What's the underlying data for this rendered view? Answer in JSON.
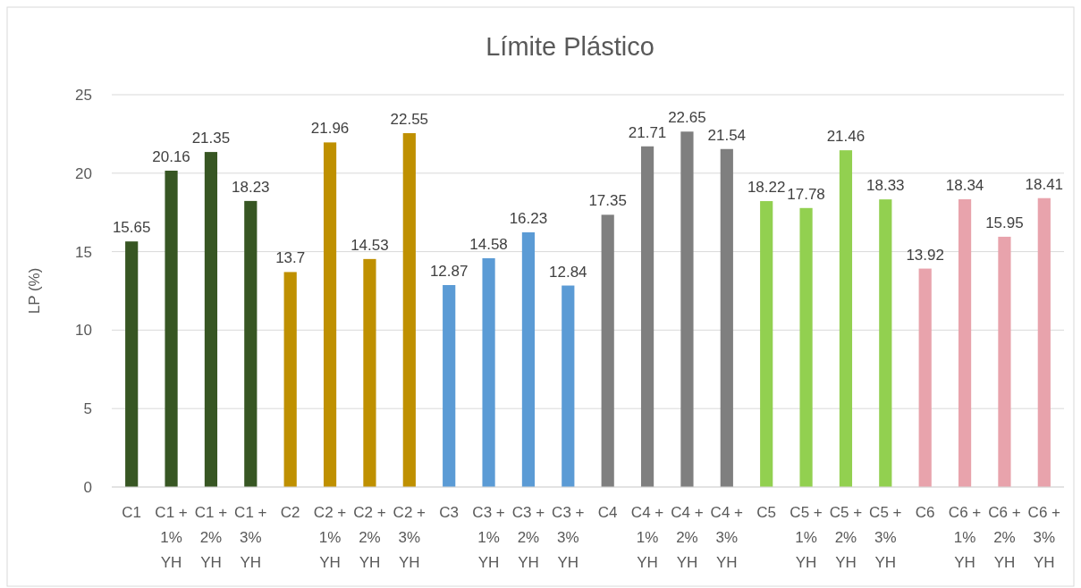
{
  "chart_data": {
    "type": "bar",
    "title": "Límite Plástico",
    "ylabel": "LP (%)",
    "categories": [
      "C1",
      "C1 + 1% YH",
      "C1 + 2% YH",
      "C1 + 3% YH",
      "C2",
      "C2 + 1% YH",
      "C2 + 2% YH",
      "C2 + 3% YH",
      "C3",
      "C3 + 1% YH",
      "C3 + 2% YH",
      "C3 + 3% YH",
      "C4",
      "C4 + 1% YH",
      "C4 + 2% YH",
      "C4 + 3% YH",
      "C5",
      "C5 + 1% YH",
      "C5 + 2% YH",
      "C5 + 3% YH",
      "C6",
      "C6 + 1% YH",
      "C6 + 2% YH",
      "C6 + 3% YH"
    ],
    "values": [
      15.65,
      20.16,
      21.35,
      18.23,
      13.7,
      21.96,
      14.53,
      22.55,
      12.87,
      14.58,
      16.23,
      12.84,
      17.35,
      21.71,
      22.65,
      21.54,
      18.22,
      17.78,
      21.46,
      18.33,
      13.92,
      18.34,
      15.95,
      18.41
    ],
    "colors": [
      "#375623",
      "#375623",
      "#375623",
      "#375623",
      "#bf9000",
      "#bf9000",
      "#bf9000",
      "#bf9000",
      "#5b9bd5",
      "#5b9bd5",
      "#5b9bd5",
      "#5b9bd5",
      "#7f7f7f",
      "#7f7f7f",
      "#7f7f7f",
      "#7f7f7f",
      "#92d050",
      "#92d050",
      "#92d050",
      "#92d050",
      "#e8a3ac",
      "#e8a3ac",
      "#e8a3ac",
      "#e8a3ac"
    ],
    "ylim": [
      0,
      25
    ],
    "yticks": [
      0,
      5,
      10,
      15,
      20,
      25
    ],
    "grid": "y",
    "data_labels": true
  }
}
